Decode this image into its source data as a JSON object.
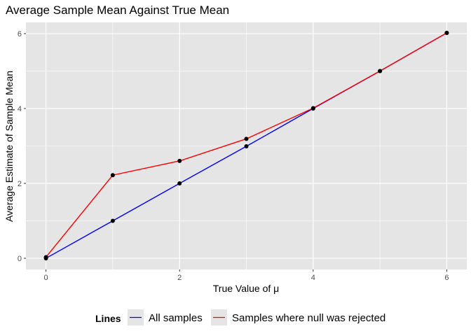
{
  "chart_data": {
    "type": "line",
    "title": "Average Sample Mean Against True Mean",
    "xlabel": "True Value of μ",
    "ylabel": "Average Estimate of Sample Mean",
    "xlim": [
      -0.3,
      6.3
    ],
    "ylim": [
      -0.3,
      6.3
    ],
    "xticks": [
      0,
      2,
      4,
      6
    ],
    "yticks": [
      0,
      2,
      4,
      6
    ],
    "grid": true,
    "legend_position": "bottom",
    "legend_title": "Lines",
    "x": [
      0,
      1,
      2,
      3,
      4,
      5,
      6
    ],
    "series": [
      {
        "name": "All samples",
        "color": "#0000ff",
        "values": [
          0.0,
          1.0,
          2.0,
          2.99,
          4.0,
          5.0,
          6.02
        ]
      },
      {
        "name": "Samples where null was rejected",
        "color": "#ff0000",
        "values": [
          0.03,
          2.22,
          2.6,
          3.19,
          4.01,
          5.0,
          6.02
        ]
      }
    ],
    "colors": {
      "panel": "#e5e5e5",
      "grid": "#ffffff",
      "point": "#000000"
    }
  }
}
